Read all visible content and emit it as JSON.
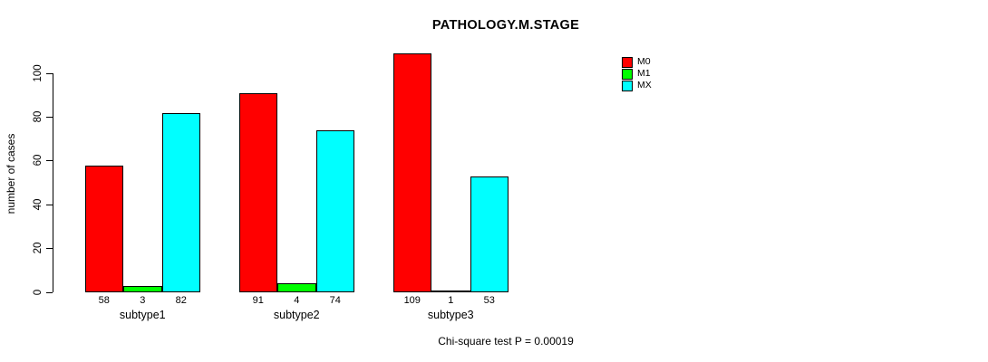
{
  "chart_data": {
    "type": "bar",
    "title": "PATHOLOGY.M.STAGE",
    "categories": [
      "subtype1",
      "subtype2",
      "subtype3"
    ],
    "series": [
      {
        "name": "M0",
        "color": "#ff0000",
        "values": [
          58,
          91,
          109
        ]
      },
      {
        "name": "M1",
        "color": "#00ff00",
        "values": [
          3,
          4,
          1
        ]
      },
      {
        "name": "MX",
        "color": "#00ffff",
        "values": [
          82,
          74,
          53
        ]
      }
    ],
    "bar_value_labels": [
      [
        58,
        3,
        82
      ],
      [
        91,
        4,
        74
      ],
      [
        109,
        1,
        53
      ]
    ],
    "xlabel": "",
    "ylabel": "number of cases",
    "yticks": [
      0,
      20,
      40,
      60,
      80,
      100
    ],
    "ylim": [
      0,
      110
    ],
    "grid": false,
    "legend_position": "top-right",
    "annotation": "Chi-square test P = 0.00019",
    "bar_border_color": "#000000",
    "background_color": "#ffffff"
  }
}
